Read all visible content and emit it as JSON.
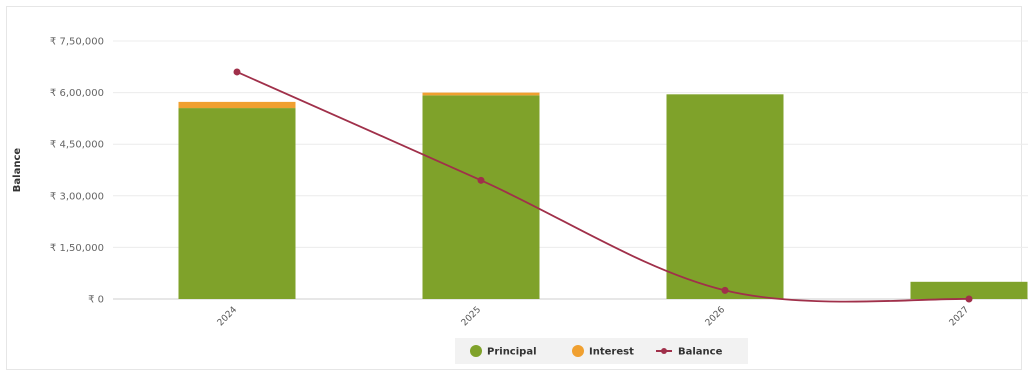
{
  "chart_data": {
    "type": "bar",
    "stacked": true,
    "categories": [
      "2024",
      "2025",
      "2026",
      "2027"
    ],
    "series": [
      {
        "name": "Principal",
        "type": "bar",
        "color": "#7fa22a",
        "values": [
          555000,
          592000,
          595000,
          50000
        ]
      },
      {
        "name": "Interest",
        "type": "bar",
        "color": "#f0a030",
        "values": [
          18000,
          8000,
          0,
          0
        ]
      },
      {
        "name": "Balance",
        "type": "line",
        "color": "#a0304a",
        "values": [
          660000,
          345000,
          25000,
          0
        ]
      }
    ],
    "yticks": [
      "₹ 0",
      "₹ 1,50,000",
      "₹ 3,00,000",
      "₹ 4,50,000",
      "₹ 6,00,000",
      "₹ 7,50,000"
    ],
    "ylim": [
      0,
      750000
    ],
    "ylabel": "Balance",
    "xlabel": "",
    "grid": true,
    "legend_position": "bottom-center"
  }
}
